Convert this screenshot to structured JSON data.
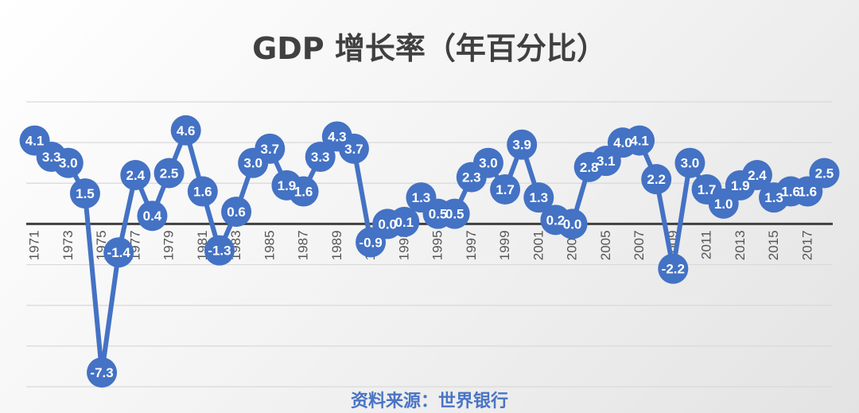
{
  "chart_data": {
    "type": "line",
    "title": "GDP 增长率（年百分比）",
    "source": "资料来源：世界银行",
    "x": [
      1971,
      1972,
      1973,
      1974,
      1975,
      1976,
      1977,
      1978,
      1979,
      1980,
      1981,
      1982,
      1983,
      1984,
      1985,
      1986,
      1987,
      1988,
      1989,
      1990,
      1991,
      1992,
      1993,
      1994,
      1995,
      1996,
      1997,
      1998,
      1999,
      2000,
      2001,
      2002,
      2003,
      2004,
      2005,
      2006,
      2007,
      2008,
      2009,
      2010,
      2011,
      2012,
      2013,
      2014,
      2015,
      2016,
      2017,
      2018
    ],
    "series": [
      {
        "values": [
          4.1,
          3.3,
          3.0,
          1.5,
          -7.3,
          -1.4,
          2.4,
          0.4,
          2.5,
          4.6,
          1.6,
          -1.3,
          0.6,
          3.0,
          3.7,
          1.9,
          1.6,
          3.3,
          4.3,
          3.7,
          -0.9,
          0.0,
          0.1,
          1.3,
          0.5,
          0.5,
          2.3,
          3.0,
          1.7,
          3.9,
          1.3,
          0.2,
          0.0,
          2.8,
          3.1,
          4.0,
          4.1,
          2.2,
          -2.2,
          3.0,
          1.7,
          1.0,
          1.9,
          2.4,
          1.3,
          1.6,
          1.6,
          2.5
        ],
        "labels": [
          "4.1",
          "3.3",
          "3.0",
          "1.5",
          "-7.3",
          "-1.4",
          "2.4",
          "0.4",
          "2.5",
          "4.6",
          "1.6",
          "-1.3",
          "0.6",
          "3.0",
          "3.7",
          "1.9",
          "1.6",
          "3.3",
          "4.3",
          "3.7",
          "-0.9",
          "0.0",
          "0.1",
          "1.3",
          "0.5",
          "0.5",
          "2.3",
          "3.0",
          "1.7",
          "3.9",
          "1.3",
          "0.2",
          "0.0",
          "2.8",
          "3.1",
          "4.0",
          "4.1",
          "2.2",
          "-2.2",
          "3.0",
          "1.7",
          "1.0",
          "1.9",
          "2.4",
          "1.3",
          "1.6",
          "1.6",
          "2.5"
        ]
      }
    ],
    "xticks": [
      "1971",
      "1973",
      "1975",
      "1977",
      "1979",
      "1981",
      "1983",
      "1985",
      "1987",
      "1989",
      "1991",
      "1993",
      "1995",
      "1997",
      "1999",
      "2001",
      "2003",
      "2005",
      "2007",
      "2009",
      "2011",
      "2013",
      "2015",
      "2017"
    ],
    "ylim": [
      -8,
      6
    ],
    "grid": true,
    "legend": "none",
    "colors": {
      "line": "#4472c4",
      "gridline": "#d9d9d9",
      "zero_axis": "#404040",
      "title": "#404040",
      "source": "#4a74c5"
    }
  }
}
